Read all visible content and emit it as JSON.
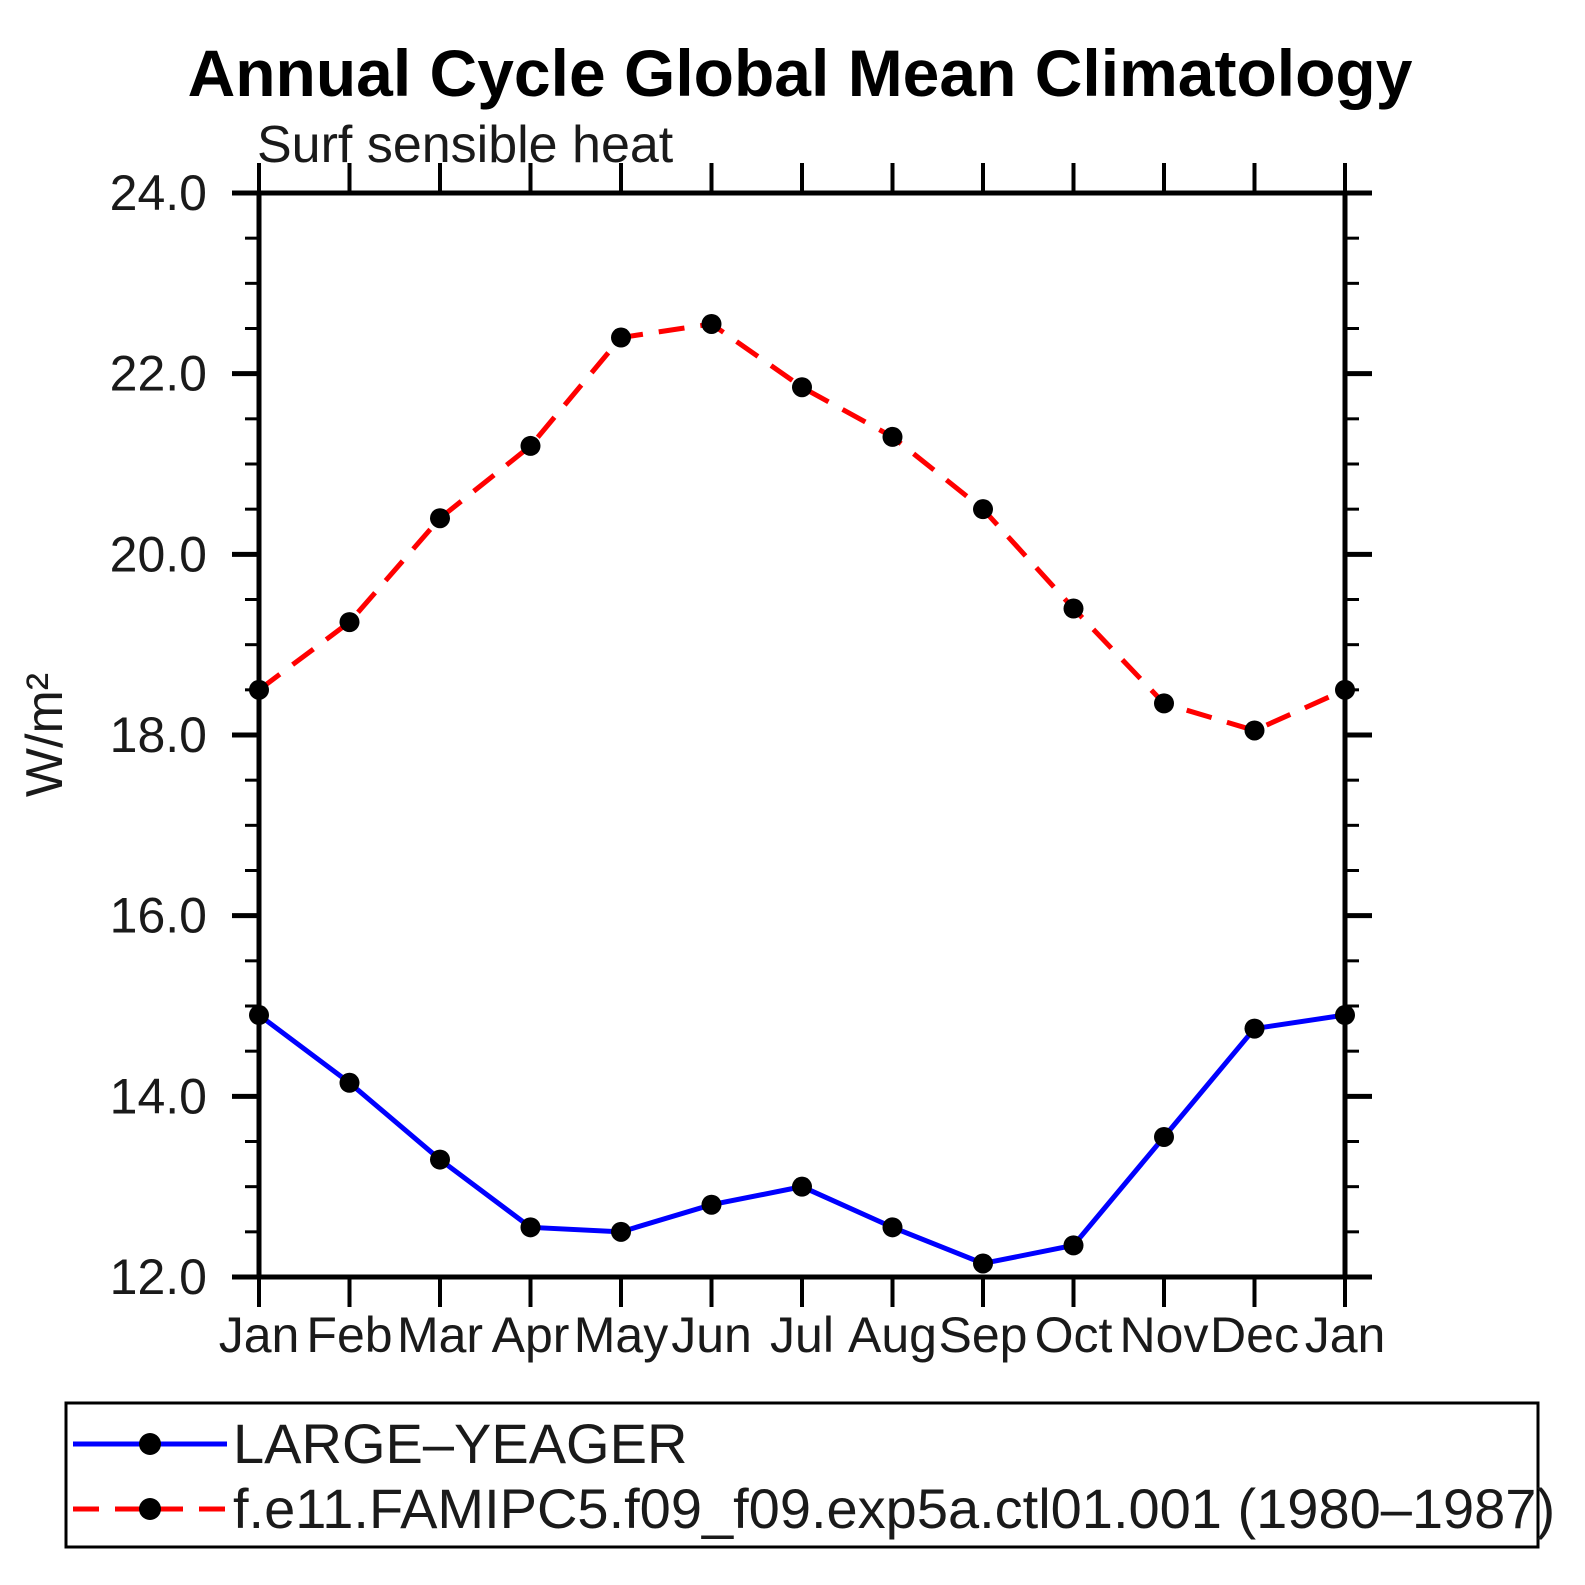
{
  "chart_data": {
    "type": "line",
    "title": "Annual Cycle Global Mean Climatology",
    "subtitle": "Surf sensible heat",
    "ylabel": "W/m²",
    "xlabel": "",
    "categories": [
      "Jan",
      "Feb",
      "Mar",
      "Apr",
      "May",
      "Jun",
      "Jul",
      "Aug",
      "Sep",
      "Oct",
      "Nov",
      "Dec",
      "Jan"
    ],
    "series": [
      {
        "name": "LARGE–YEAGER",
        "color": "#0000ff",
        "line_style": "solid",
        "marker": "filled-circle",
        "marker_color": "#000000",
        "values": [
          14.9,
          14.15,
          13.3,
          12.55,
          12.5,
          12.8,
          13.0,
          12.55,
          12.15,
          12.35,
          13.55,
          14.75,
          14.9
        ]
      },
      {
        "name": "f.e11.FAMIPC5.f09_f09.exp5a.ctl01.001 (1980–1987)",
        "color": "#ff0000",
        "line_style": "dashed",
        "marker": "filled-circle",
        "marker_color": "#000000",
        "values": [
          18.5,
          19.25,
          20.4,
          21.2,
          22.4,
          22.55,
          21.85,
          21.3,
          20.5,
          19.4,
          18.35,
          18.05,
          18.5
        ]
      }
    ],
    "ylim": [
      12.0,
      24.0
    ],
    "ytick_major_step": 2.0,
    "ytick_minor_step": 0.5,
    "ytick_labels": [
      "24.0",
      "22.0",
      "20.0",
      "18.0",
      "16.0",
      "14.0",
      "12.0"
    ],
    "grid": false,
    "tick_direction": "out",
    "legend_position": "bottom-left",
    "frame_color": "#000000",
    "background_color": "#ffffff"
  }
}
